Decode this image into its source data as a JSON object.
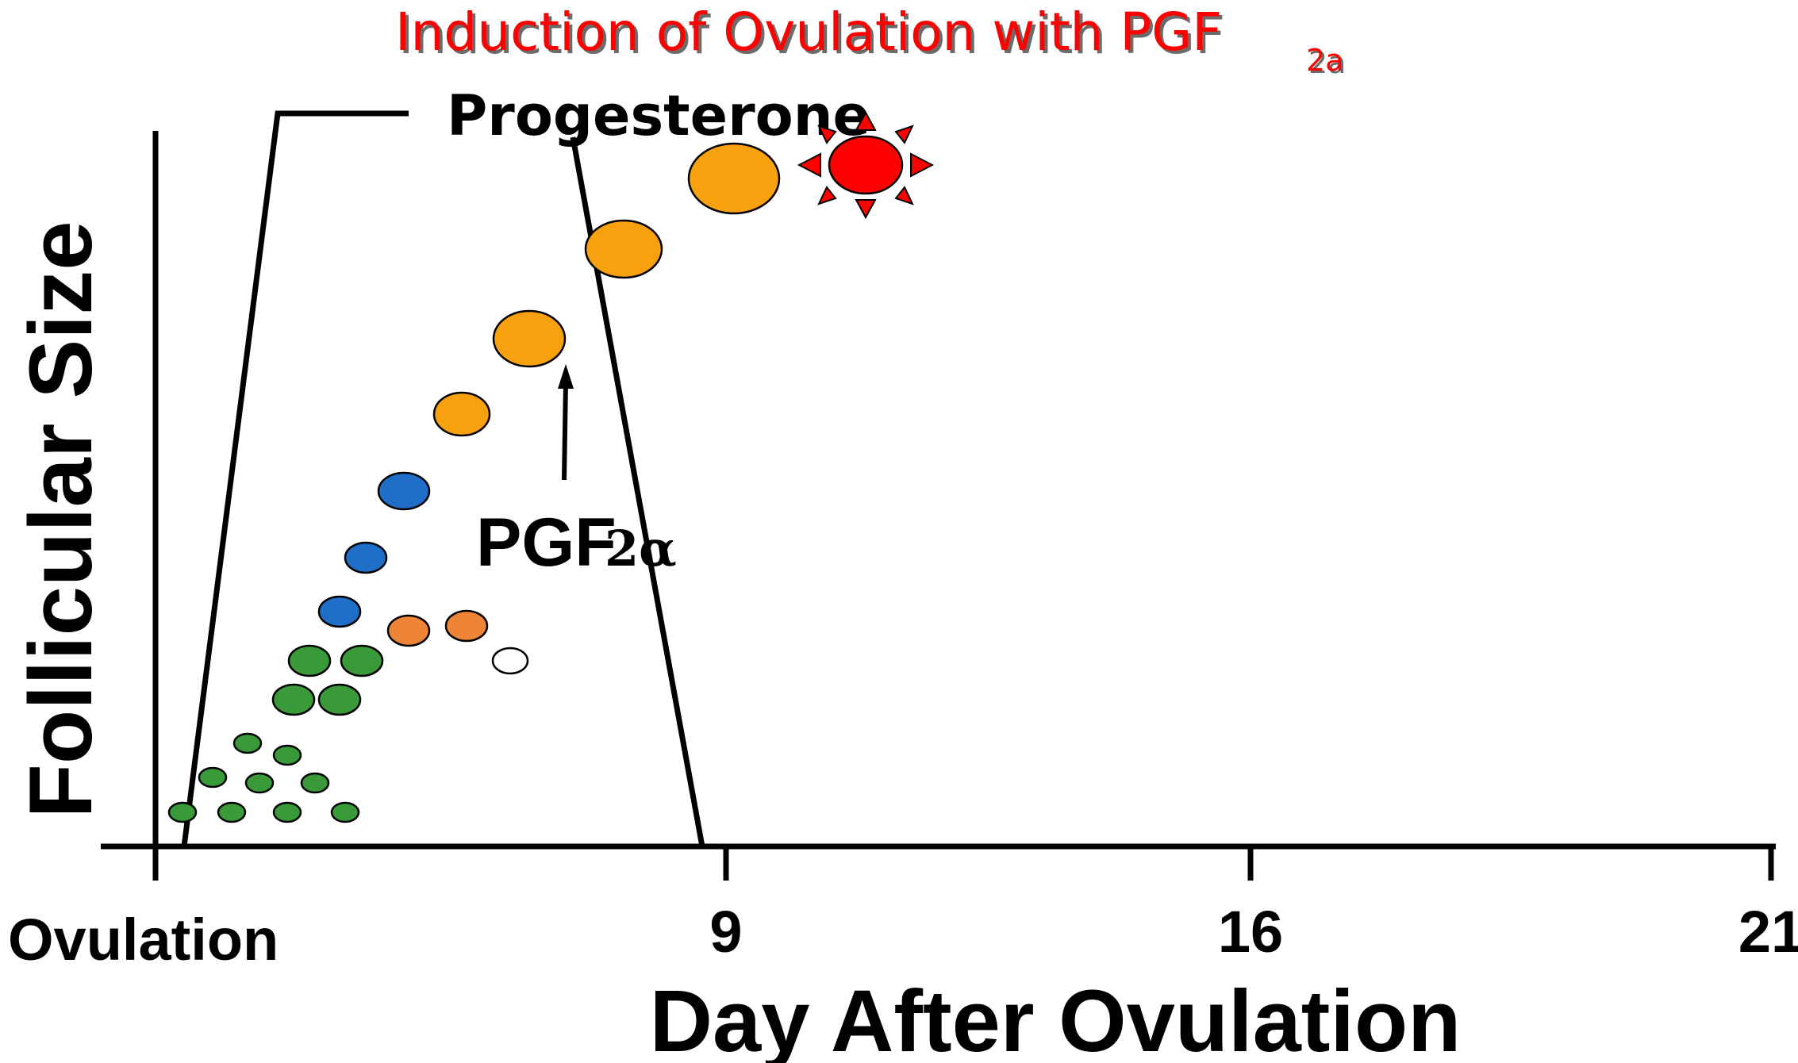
{
  "title": {
    "text": "Induction of Ovulation with PGF",
    "subscript": "2a"
  },
  "progesterone_label": "Progesterone",
  "pgf_label": {
    "text": "PGF",
    "subscript": "2α"
  },
  "axes": {
    "x_label": "Day After Ovulation",
    "y_label": "Follicular Size",
    "x_ticks": [
      "Ovulation",
      "9",
      "16",
      "21"
    ]
  },
  "colors": {
    "title": "#ff0000",
    "green": "#3a9a3a",
    "blue": "#1f6fc8",
    "orange": "#f7a10e",
    "dark_orange": "#ee8436",
    "ovulation": "#ff0000"
  },
  "follicle_colors": [
    "green",
    "blue",
    "orange",
    "dark_orange",
    "white"
  ],
  "ovulation_icon": "red-sunburst-ovulation-icon",
  "pgf_arrow_icon": "up-arrow-icon"
}
